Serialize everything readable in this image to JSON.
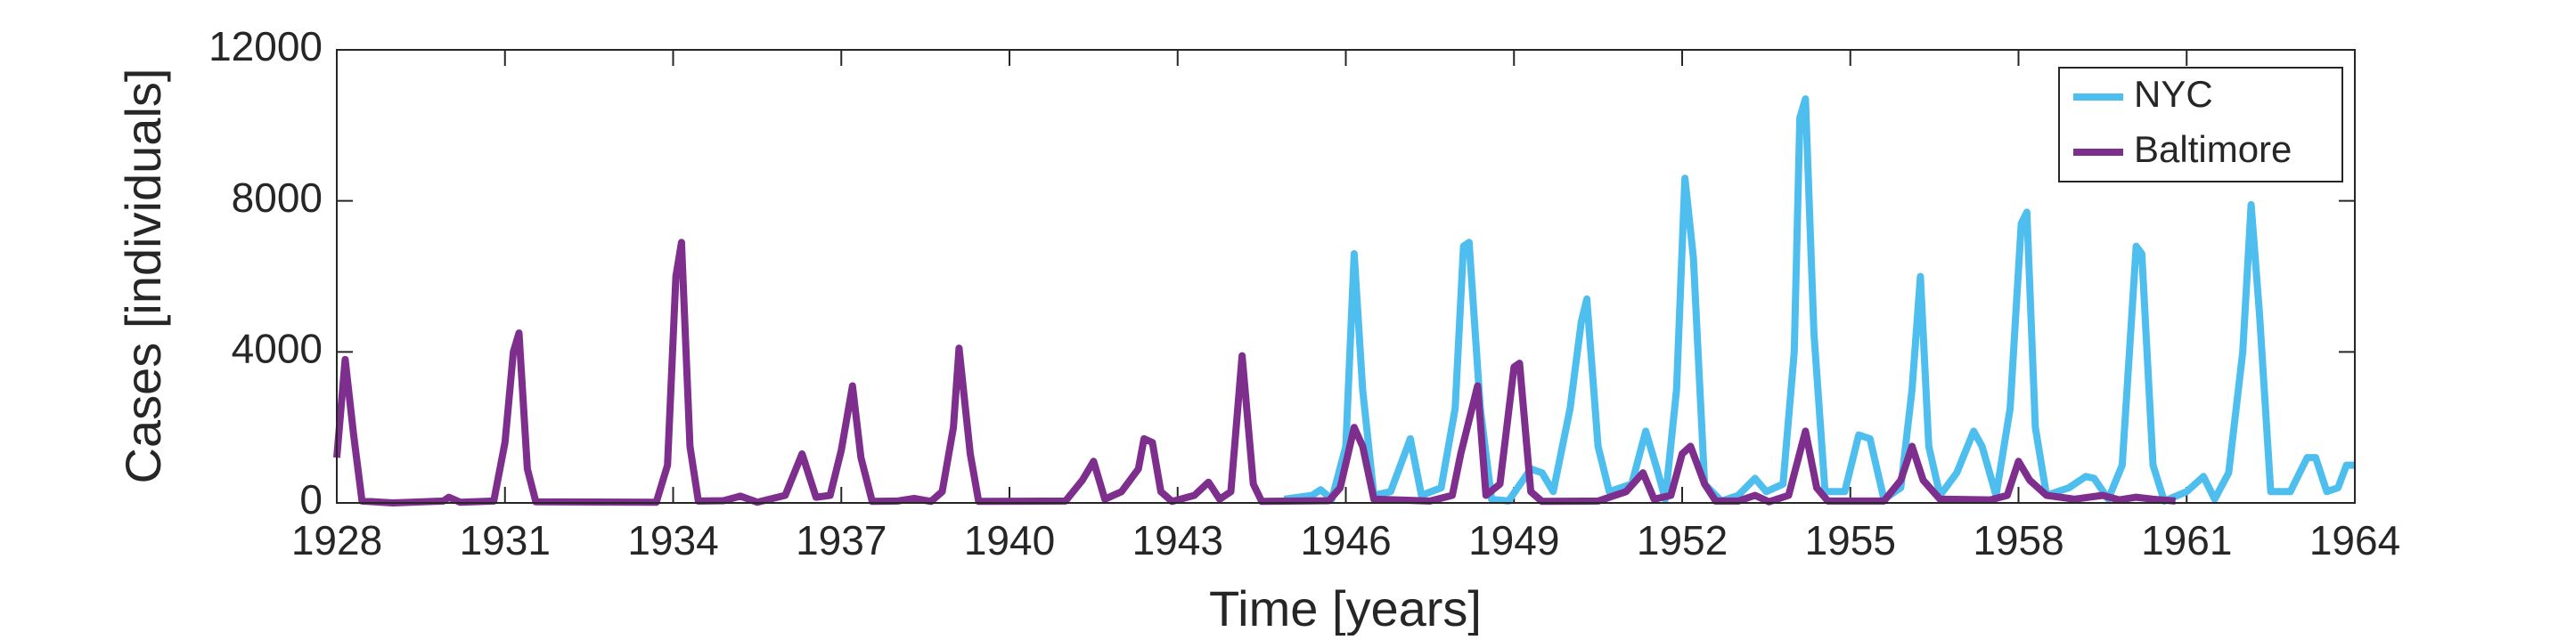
{
  "chart_data": {
    "type": "line",
    "xlabel": "Time [years]",
    "ylabel": "Cases [individuals]",
    "xlim": [
      1928,
      1964
    ],
    "xticks": [
      1928,
      1931,
      1934,
      1937,
      1940,
      1943,
      1946,
      1949,
      1952,
      1955,
      1958,
      1961,
      1964
    ],
    "ylim": [
      0,
      12000
    ],
    "yticks": [
      0,
      4000,
      8000,
      12000
    ],
    "legend": "northeast",
    "box": true,
    "series": [
      {
        "name": "NYC",
        "color": "#4dbeee",
        "x": [
          1944.9,
          1945.4,
          1945.55,
          1945.75,
          1946.0,
          1946.15,
          1946.3,
          1946.5,
          1946.8,
          1947.15,
          1947.35,
          1947.7,
          1947.95,
          1948.1,
          1948.2,
          1948.4,
          1948.6,
          1948.9,
          1949.3,
          1949.5,
          1949.7,
          1950.0,
          1950.2,
          1950.3,
          1950.5,
          1950.7,
          1951.1,
          1951.35,
          1951.55,
          1951.7,
          1951.9,
          1952.05,
          1952.2,
          1952.4,
          1952.7,
          1953.0,
          1953.3,
          1953.5,
          1953.8,
          1954.0,
          1954.1,
          1954.2,
          1954.35,
          1954.55,
          1954.9,
          1955.15,
          1955.35,
          1955.6,
          1955.9,
          1956.1,
          1956.25,
          1956.4,
          1956.6,
          1956.9,
          1957.2,
          1957.35,
          1957.6,
          1957.85,
          1958.05,
          1958.15,
          1958.3,
          1958.5,
          1958.9,
          1959.2,
          1959.35,
          1959.6,
          1959.85,
          1960.1,
          1960.2,
          1960.4,
          1960.6,
          1961.0,
          1961.3,
          1961.5,
          1961.75,
          1962.0,
          1962.15,
          1962.3,
          1962.5,
          1962.85,
          1963.15,
          1963.3,
          1963.5,
          1963.7,
          1963.85,
          1964.0
        ],
        "values": [
          100,
          200,
          350,
          100,
          1500,
          6600,
          3000,
          200,
          300,
          1700,
          200,
          400,
          2500,
          6800,
          6900,
          2500,
          100,
          50,
          900,
          800,
          300,
          2500,
          4800,
          5400,
          1500,
          300,
          500,
          1900,
          900,
          100,
          3000,
          8600,
          6500,
          500,
          50,
          200,
          650,
          300,
          500,
          4000,
          10200,
          10700,
          4500,
          300,
          300,
          1800,
          1700,
          100,
          400,
          3000,
          6000,
          1500,
          200,
          800,
          1900,
          1500,
          200,
          2500,
          7400,
          7700,
          2000,
          200,
          400,
          700,
          650,
          100,
          1000,
          6800,
          6600,
          1000,
          50,
          300,
          700,
          100,
          800,
          4000,
          7900,
          5000,
          300,
          300,
          1200,
          1200,
          300,
          400,
          1000,
          1000
        ]
      },
      {
        "name": "Baltimore",
        "color": "#7e2f8e",
        "x": [
          1928.0,
          1928.15,
          1928.3,
          1928.45,
          1929.0,
          1929.9,
          1930.0,
          1930.2,
          1930.8,
          1931.0,
          1931.15,
          1931.25,
          1931.4,
          1931.55,
          1933.7,
          1933.9,
          1934.05,
          1934.15,
          1934.3,
          1934.45,
          1934.9,
          1935.2,
          1935.5,
          1936.0,
          1936.3,
          1936.55,
          1936.8,
          1937.0,
          1937.2,
          1937.35,
          1937.55,
          1938.0,
          1938.3,
          1938.6,
          1938.8,
          1939.0,
          1939.1,
          1939.3,
          1939.45,
          1941.0,
          1941.3,
          1941.5,
          1941.7,
          1942.0,
          1942.3,
          1942.4,
          1942.55,
          1942.7,
          1942.9,
          1943.3,
          1943.55,
          1943.75,
          1943.95,
          1944.15,
          1944.35,
          1944.5,
          1945.7,
          1945.9,
          1946.15,
          1946.3,
          1946.5,
          1947.5,
          1947.9,
          1948.05,
          1948.35,
          1948.5,
          1948.75,
          1949.0,
          1949.1,
          1949.3,
          1949.5,
          1950.5,
          1951.0,
          1951.3,
          1951.5,
          1951.8,
          1952.0,
          1952.15,
          1952.4,
          1952.6,
          1953.0,
          1953.3,
          1953.55,
          1953.9,
          1954.2,
          1954.4,
          1954.6,
          1955.6,
          1955.9,
          1956.1,
          1956.3,
          1956.6,
          1957.5,
          1957.8,
          1958.0,
          1958.2,
          1958.5,
          1959.0,
          1959.5,
          1959.8,
          1960.1,
          1960.4,
          1960.8
        ],
        "values": [
          1200,
          3800,
          1800,
          50,
          0,
          50,
          150,
          20,
          50,
          1600,
          4000,
          4500,
          900,
          30,
          20,
          1000,
          6000,
          6900,
          1500,
          50,
          60,
          180,
          20,
          200,
          1300,
          150,
          200,
          1400,
          3100,
          1200,
          40,
          50,
          120,
          40,
          300,
          2000,
          4100,
          1300,
          40,
          50,
          600,
          1100,
          100,
          300,
          900,
          1700,
          1600,
          300,
          40,
          200,
          550,
          100,
          300,
          3900,
          500,
          40,
          60,
          400,
          2000,
          1500,
          100,
          50,
          200,
          1300,
          3100,
          200,
          500,
          3600,
          3700,
          300,
          40,
          50,
          300,
          800,
          100,
          200,
          1300,
          1500,
          500,
          50,
          50,
          200,
          30,
          200,
          1900,
          400,
          50,
          50,
          600,
          1500,
          600,
          100,
          80,
          200,
          1100,
          600,
          200,
          100,
          200,
          80,
          150,
          100,
          50
        ]
      }
    ]
  }
}
